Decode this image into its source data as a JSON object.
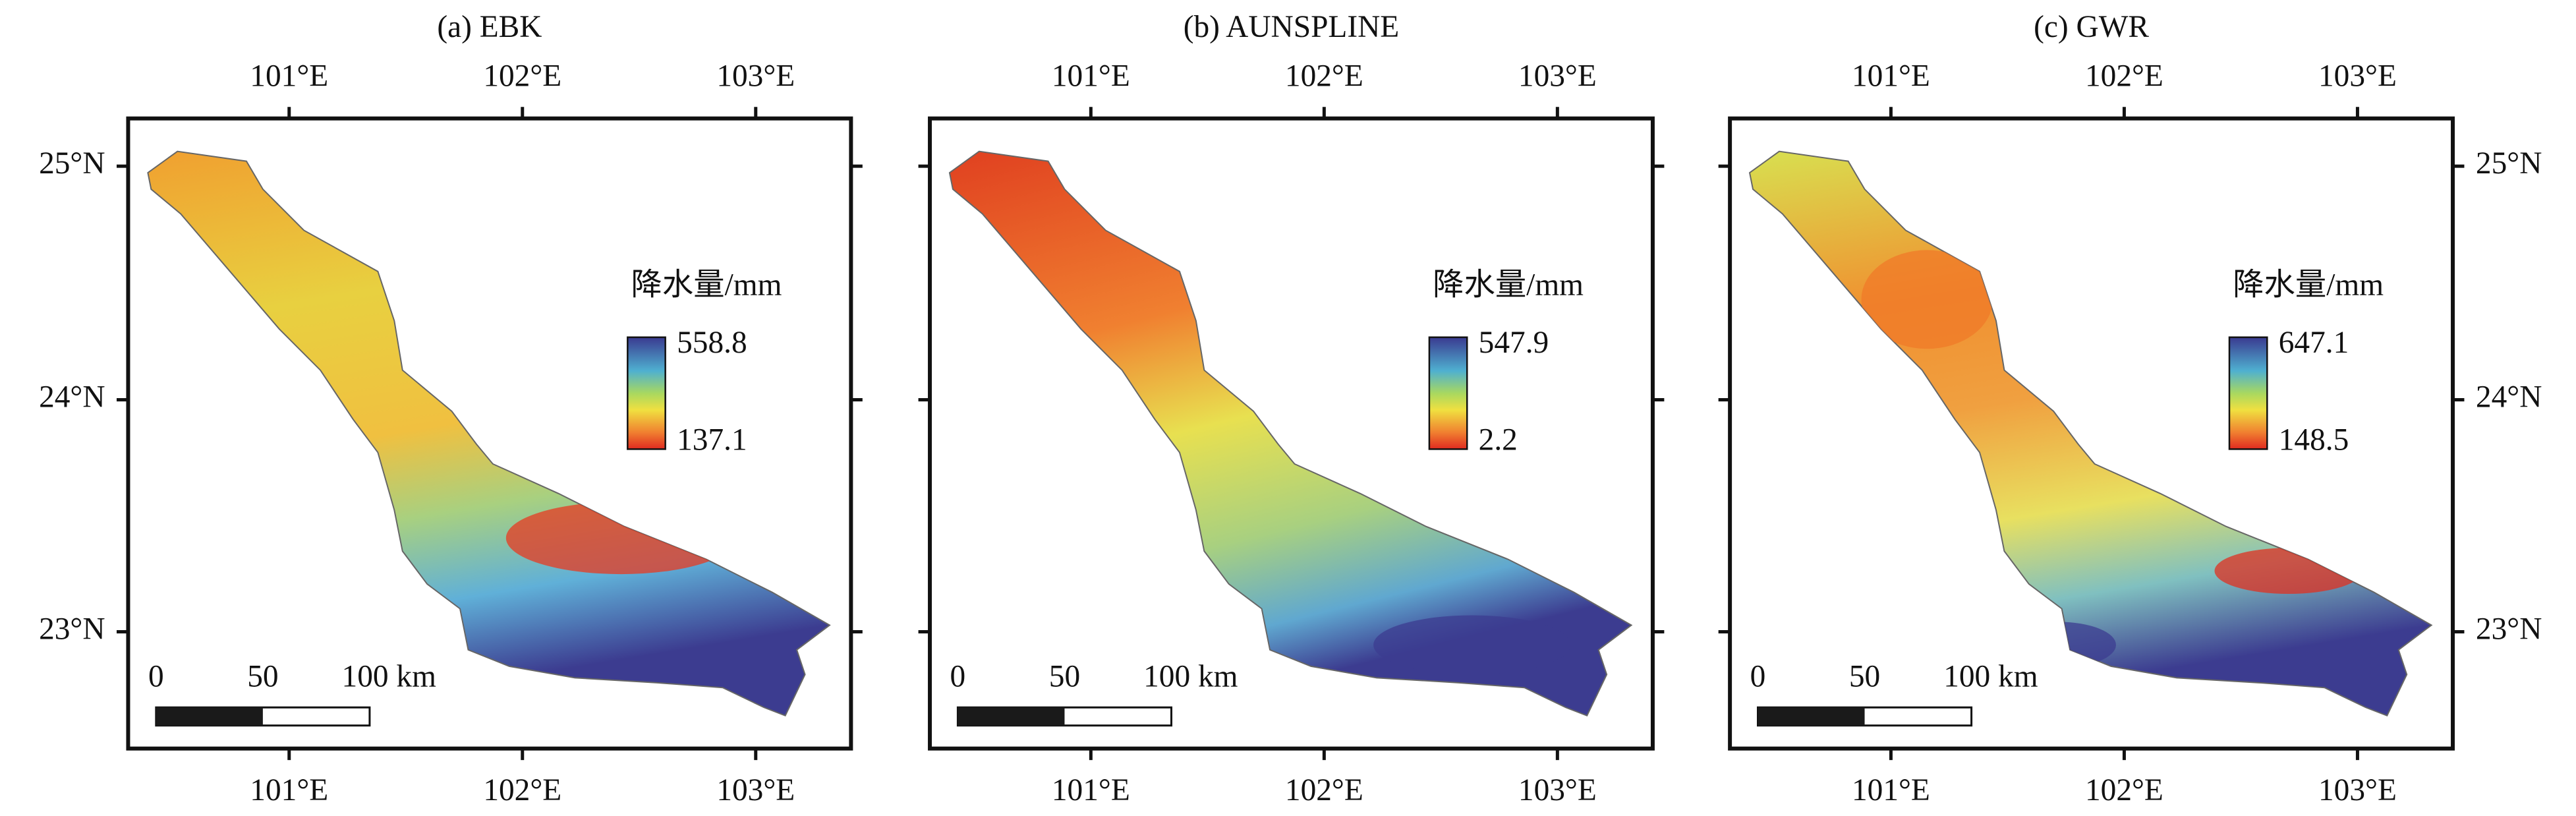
{
  "panels": [
    {
      "title": "(a) EBK",
      "legend": {
        "title": "降水量/mm",
        "max": "558.8",
        "min": "137.1"
      },
      "scale_bar": [
        "0",
        "50",
        "100 km"
      ]
    },
    {
      "title": "(b) AUNSPLINE",
      "legend": {
        "title": "降水量/mm",
        "max": "547.9",
        "min": "2.2"
      },
      "scale_bar": [
        "0",
        "50",
        "100 km"
      ]
    },
    {
      "title": "(c) GWR",
      "legend": {
        "title": "降水量/mm",
        "max": "647.1",
        "min": "148.5"
      },
      "scale_bar": [
        "0",
        "50",
        "100 km"
      ]
    }
  ],
  "lon_ticks": [
    "101°E",
    "102°E",
    "103°E"
  ],
  "lat_ticks": [
    "25°N",
    "24°N",
    "23°N"
  ]
}
